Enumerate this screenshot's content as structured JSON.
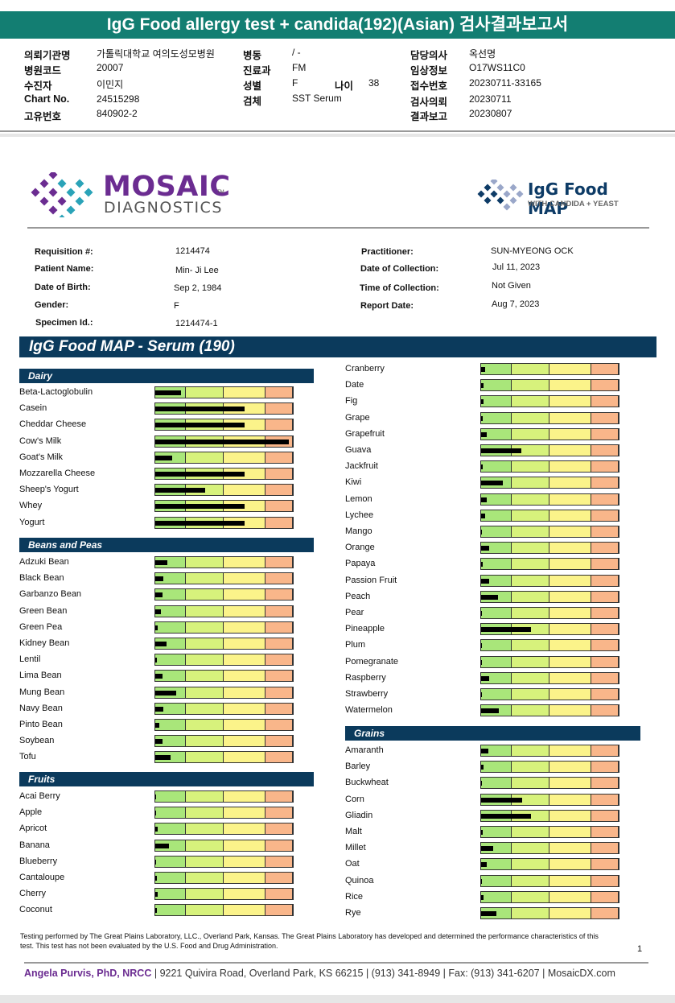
{
  "kr_header": {
    "title": "IgG Food allergy test + candida(192)(Asian) 검사결과보고서",
    "fields": [
      {
        "label": "의뢰기관명",
        "value": "가톨릭대학교 여의도성모병원"
      },
      {
        "label": "병원코드",
        "value": "20007"
      },
      {
        "label": "수진자",
        "value": "이민지"
      },
      {
        "label": "Chart No.",
        "value": "24515298"
      },
      {
        "label": "고유번호",
        "value": "840902-2"
      },
      {
        "label": "병동",
        "value": "/ -"
      },
      {
        "label": "진료과",
        "value": "FM"
      },
      {
        "label": "성별",
        "value": "F"
      },
      {
        "label": "나이",
        "value": "38"
      },
      {
        "label": "검체",
        "value": "SST Serum"
      },
      {
        "label": "담당의사",
        "value": "옥선명"
      },
      {
        "label": "임상정보",
        "value": "O17WS11C0"
      },
      {
        "label": "접수번호",
        "value": "20230711-33165"
      },
      {
        "label": "검사의뢰",
        "value": "20230711"
      },
      {
        "label": "결과보고",
        "value": "20230807"
      }
    ]
  },
  "logos": {
    "mosaic_word": "MOSAIC",
    "mosaic_tm": "TM",
    "mosaic_sub": "DIAGNOSTICS",
    "map_word": "IgG Food MAP",
    "map_sub": "WITH CANDIDA + YEAST",
    "purple": "#6b2c91",
    "teal": "#2aa3b8",
    "navy": "#0d3b66"
  },
  "patient": {
    "requisition_label": "Requisition #:",
    "requisition": "1214474",
    "name_label": "Patient Name:",
    "name": "Min- Ji Lee",
    "dob_label": "Date of Birth:",
    "dob": "Sep 2, 1984",
    "gender_label": "Gender:",
    "gender": "F",
    "specimen_label": "Specimen Id.:",
    "specimen": "1214474-1",
    "practitioner_label": "Practitioner:",
    "practitioner": "SUN-MYEONG OCK",
    "collection_date_label": "Date of Collection:",
    "collection_date": "Jul 11, 2023",
    "collection_time_label": "Time of Collection:",
    "collection_time": "Not Given",
    "report_date_label": "Report Date:",
    "report_date": "Aug 7, 2023"
  },
  "banner": "IgG Food MAP - Serum (190)",
  "categories": {
    "dairy": "Dairy",
    "beans": "Beans and Peas",
    "fruits": "Fruits",
    "grains": "Grains"
  },
  "bar_colors": {
    "low": "#a9e67a",
    "mild": "#d7f27c",
    "moderate": "#fbf38a",
    "high": "#f9b68a"
  },
  "left_foods": [
    {
      "name": "Beta-Lactoglobulin",
      "level": 0.19
    },
    {
      "name": "Casein",
      "level": 0.65
    },
    {
      "name": "Cheddar Cheese",
      "level": 0.65
    },
    {
      "name": "Cow's Milk",
      "level": 0.97
    },
    {
      "name": "Goat's Milk",
      "level": 0.12
    },
    {
      "name": "Mozzarella Cheese",
      "level": 0.65
    },
    {
      "name": "Sheep's Yogurt",
      "level": 0.36
    },
    {
      "name": "Whey",
      "level": 0.65
    },
    {
      "name": "Yogurt",
      "level": 0.65
    },
    {
      "name": "Adzuki Bean",
      "level": 0.09
    },
    {
      "name": "Black Bean",
      "level": 0.06
    },
    {
      "name": "Garbanzo Bean",
      "level": 0.05
    },
    {
      "name": "Green Bean",
      "level": 0.04
    },
    {
      "name": "Green Pea",
      "level": 0.02
    },
    {
      "name": "Kidney Bean",
      "level": 0.08
    },
    {
      "name": "Lentil",
      "level": 0.01
    },
    {
      "name": "Lima Bean",
      "level": 0.05
    },
    {
      "name": "Mung Bean",
      "level": 0.15
    },
    {
      "name": "Navy Bean",
      "level": 0.06
    },
    {
      "name": "Pinto Bean",
      "level": 0.03
    },
    {
      "name": "Soybean",
      "level": 0.05
    },
    {
      "name": "Tofu",
      "level": 0.11
    },
    {
      "name": "Acai Berry",
      "level": 0.0
    },
    {
      "name": "Apple",
      "level": 0.0
    },
    {
      "name": "Apricot",
      "level": 0.02
    },
    {
      "name": "Banana",
      "level": 0.1
    },
    {
      "name": "Blueberry",
      "level": 0.0
    },
    {
      "name": "Cantaloupe",
      "level": 0.01
    },
    {
      "name": "Cherry",
      "level": 0.02
    },
    {
      "name": "Coconut",
      "level": 0.01
    }
  ],
  "right_foods": [
    {
      "name": "Cranberry",
      "level": 0.03
    },
    {
      "name": "Date",
      "level": 0.02
    },
    {
      "name": "Fig",
      "level": 0.02
    },
    {
      "name": "Grape",
      "level": 0.01
    },
    {
      "name": "Grapefruit",
      "level": 0.04
    },
    {
      "name": "Guava",
      "level": 0.29
    },
    {
      "name": "Jackfruit",
      "level": 0.01
    },
    {
      "name": "Kiwi",
      "level": 0.16
    },
    {
      "name": "Lemon",
      "level": 0.04
    },
    {
      "name": "Lychee",
      "level": 0.03
    },
    {
      "name": "Mango",
      "level": 0.0
    },
    {
      "name": "Orange",
      "level": 0.06
    },
    {
      "name": "Papaya",
      "level": 0.01
    },
    {
      "name": "Passion Fruit",
      "level": 0.06
    },
    {
      "name": "Peach",
      "level": 0.12
    },
    {
      "name": "Pear",
      "level": 0.0
    },
    {
      "name": "Pineapple",
      "level": 0.36
    },
    {
      "name": "Plum",
      "level": 0.0
    },
    {
      "name": "Pomegranate",
      "level": 0.0
    },
    {
      "name": "Raspberry",
      "level": 0.06
    },
    {
      "name": "Strawberry",
      "level": 0.0
    },
    {
      "name": "Watermelon",
      "level": 0.13
    },
    {
      "name": "Amaranth",
      "level": 0.05
    },
    {
      "name": "Barley",
      "level": 0.02
    },
    {
      "name": "Buckwheat",
      "level": 0.0
    },
    {
      "name": "Corn",
      "level": 0.3
    },
    {
      "name": "Gliadin",
      "level": 0.36
    },
    {
      "name": "Malt",
      "level": 0.01
    },
    {
      "name": "Millet",
      "level": 0.09
    },
    {
      "name": "Oat",
      "level": 0.04
    },
    {
      "name": "Quinoa",
      "level": 0.0
    },
    {
      "name": "Rice",
      "level": 0.02
    },
    {
      "name": "Rye",
      "level": 0.11
    }
  ],
  "footnote": "Testing performed by The Great Plains Laboratory, LLC., Overland Park, Kansas.  The Great Plains Laboratory has developed and determined the performance characteristics of this test.  This test has not been evaluated by the U.S.  Food and Drug Administration.",
  "page_number": "1",
  "footer": {
    "name": "Angela Purvis, PhD, NRCC",
    "rest": " | 9221 Quivira Road, Overland Park, KS 66215  |  (913) 341-8949  |  Fax: (913) 341-6207 | MosaicDX.com"
  }
}
